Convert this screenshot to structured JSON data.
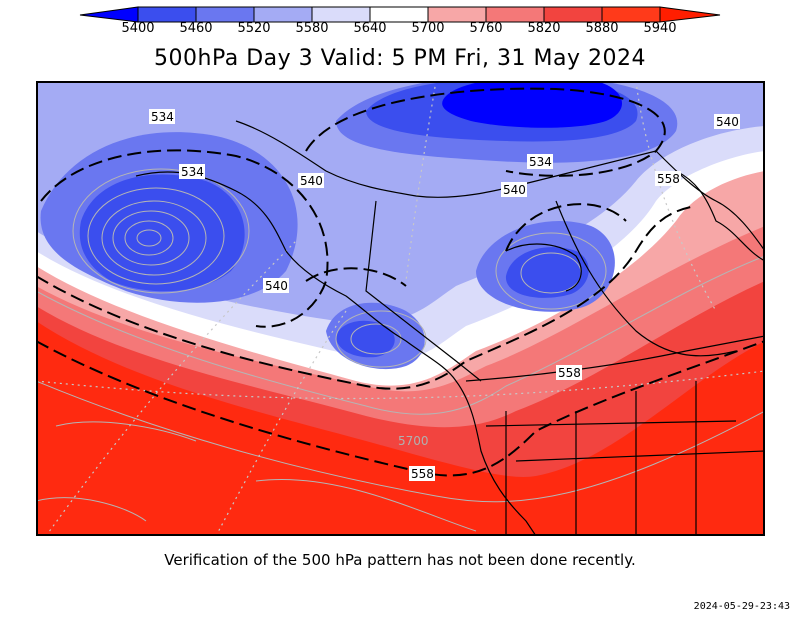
{
  "colorbar": {
    "levels": [
      "5400",
      "5460",
      "5520",
      "5580",
      "5640",
      "5700",
      "5760",
      "5820",
      "5880",
      "5940"
    ],
    "colors": [
      "#0000ff",
      "#3b4eee",
      "#6a77f0",
      "#a4abf4",
      "#dadcfa",
      "#ffffff",
      "#f7a7a7",
      "#f47878",
      "#f2443f",
      "#ff1e00"
    ]
  },
  "title": "500hPa Day  3 Valid:  5 PM Fri, 31 May 2024",
  "map": {
    "contour_labels": [
      "534",
      "534",
      "540",
      "540",
      "534",
      "540",
      "558",
      "540",
      "558",
      "558",
      "5700"
    ]
  },
  "caption": "Verification of the 500 hPa pattern has not been done recently.",
  "timestamp": "2024-05-29-23:43"
}
